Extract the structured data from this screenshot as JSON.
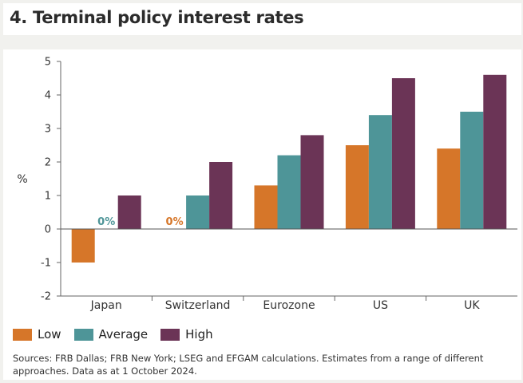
{
  "title": "4. Terminal policy interest rates",
  "source_text": "Sources: FRB Dallas; FRB New York; LSEG and EFGAM calculations. Estimates from a range of different approaches. Data as at 1 October 2024.",
  "chart_data": {
    "type": "bar",
    "title": "4. Terminal policy interest rates",
    "xlabel": "",
    "ylabel": "%",
    "ylim": [
      -2,
      5
    ],
    "yticks": [
      "5",
      "4",
      "3",
      "2",
      "1",
      "0",
      "-1",
      "-2"
    ],
    "ytick_values": [
      5,
      4,
      3,
      2,
      1,
      0,
      -1,
      -2
    ],
    "categories": [
      "Japan",
      "Switzerland",
      "Eurozone",
      "US",
      "UK"
    ],
    "series": [
      {
        "name": "Low",
        "color": "#d67629",
        "values": [
          -1,
          0,
          1.3,
          2.5,
          2.4
        ]
      },
      {
        "name": "Average",
        "color": "#4e9598",
        "values": [
          0,
          1,
          2.2,
          3.4,
          3.5
        ]
      },
      {
        "name": "High",
        "color": "#6b3456",
        "values": [
          1,
          2,
          2.8,
          4.5,
          4.6
        ]
      }
    ],
    "annotations": [
      {
        "text": "0%",
        "category": "Japan",
        "series": "Average",
        "color": "#4e9598"
      },
      {
        "text": "0%",
        "category": "Switzerland",
        "series": "Low",
        "color": "#d67629"
      }
    ],
    "legend_position": "bottom-left",
    "grid": false
  }
}
